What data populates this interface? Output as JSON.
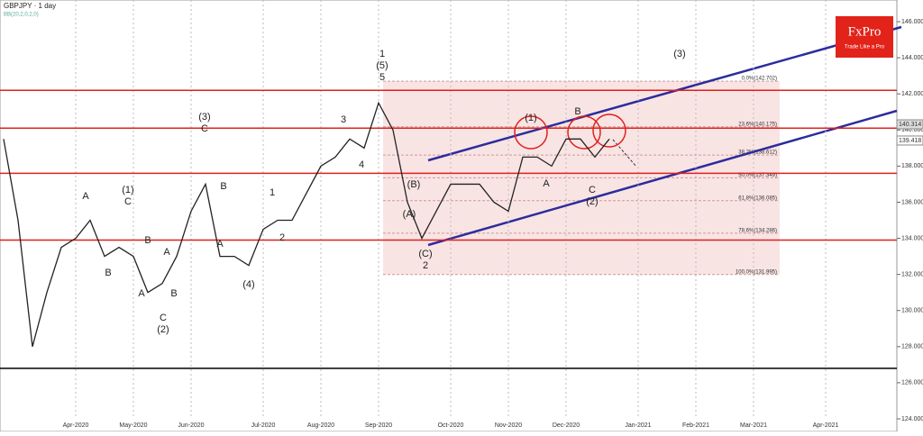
{
  "chart_data": {
    "type": "line",
    "title": "GBPJPY · 1 day",
    "subtitle": "BB(20,2,0,2,0)",
    "categories": [
      null,
      null,
      null,
      null,
      null,
      "Apr-2020",
      null,
      null,
      null,
      "May-2020",
      null,
      null,
      null,
      "Jun-2020",
      null,
      null,
      null,
      null,
      "Jul-2020",
      null,
      null,
      null,
      "Aug-2020",
      null,
      null,
      null,
      "Sep-2020",
      null,
      null,
      null,
      null,
      "Oct-2020",
      null,
      null,
      null,
      "Nov-2020",
      null,
      null,
      null,
      "Dec-2020",
      null,
      null,
      null,
      null,
      "Jan-2021",
      null,
      null,
      null,
      "Feb-2021",
      null,
      null,
      null,
      "Mar-2021",
      null,
      null,
      null,
      null,
      "Apr-2021",
      null,
      null,
      null,
      null
    ],
    "series": [
      {
        "name": "GBPJPY",
        "color": "#222222",
        "values": [
          139.5,
          135,
          128,
          131,
          133.5,
          134,
          135,
          133,
          133.5,
          133,
          131,
          131.5,
          133,
          135.5,
          137,
          133,
          133,
          132.5,
          134.5,
          135,
          135,
          136.5,
          138,
          138.5,
          139.5,
          139,
          141.5,
          140,
          136,
          134,
          135.5,
          137,
          137,
          137,
          136,
          135.5,
          138.5,
          138.5,
          138,
          139.5,
          139.5,
          138.5,
          139.5,
          null,
          null,
          null,
          null,
          null,
          null,
          null,
          null,
          null,
          null,
          null,
          null,
          null,
          null,
          null,
          null,
          null,
          null,
          null
        ]
      }
    ],
    "ylim": [
      123.3,
      147.2
    ],
    "yticks": [
      {
        "value": 124,
        "label": "124.000"
      },
      {
        "value": 126,
        "label": "126.000"
      },
      {
        "value": 128,
        "label": "128.000"
      },
      {
        "value": 130,
        "label": "130.000"
      },
      {
        "value": 132,
        "label": "132.000"
      },
      {
        "value": 134,
        "label": "134.000"
      },
      {
        "value": 136,
        "label": "136.000"
      },
      {
        "value": 138,
        "label": "138.000"
      },
      {
        "value": 140,
        "label": "140.000"
      },
      {
        "value": 142,
        "label": "142.000"
      },
      {
        "value": 144,
        "label": "144.000"
      },
      {
        "value": 146,
        "label": "146.000"
      }
    ],
    "levels": [
      142.2,
      140.1,
      137.6,
      133.9
    ],
    "level_color": "#e0201c",
    "black_level": 126.8,
    "fib_levels": [
      {
        "value": 142.702,
        "label": "0.0%(142.702)"
      },
      {
        "value": 140.175,
        "label": "23.6%(140.175)"
      },
      {
        "value": 138.612,
        "label": "38.2%(138.612)"
      },
      {
        "value": 137.349,
        "label": "50.0%(137.349)"
      },
      {
        "value": 136.085,
        "label": "61.8%(136.085)"
      },
      {
        "value": 134.286,
        "label": "78.6%(134.286)"
      },
      {
        "value": 131.995,
        "label": "100.0%(131.995)"
      }
    ],
    "price_tags": [
      {
        "value": 140.314,
        "label": "140.314"
      },
      {
        "value": 139.418,
        "label": "139.418"
      }
    ],
    "annotations": [
      "1",
      "(5)",
      "5",
      "3",
      "4",
      "(3)",
      "C",
      "(1)",
      "C",
      "A",
      "B",
      "B",
      "A",
      "A",
      "B",
      "C",
      "(2)",
      "B",
      "A",
      "1",
      "2",
      "(4)",
      "(B)",
      "(A)",
      "(C)",
      "2",
      "(1)",
      "B",
      "A",
      "C",
      "(2)",
      "(3)"
    ],
    "logo": {
      "name": "FxPro",
      "tagline": "Trade Like a Pro"
    }
  }
}
